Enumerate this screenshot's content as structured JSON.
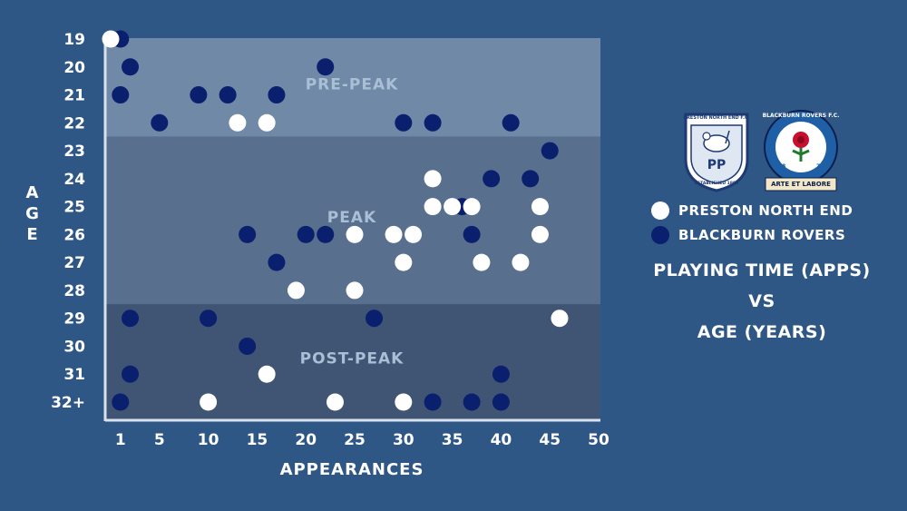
{
  "title_lines": [
    "PLAYING TIME (APPS)",
    "VS",
    "AGE (YEARS)"
  ],
  "legend": [
    {
      "label": "PRESTON NORTH END",
      "color": "#ffffff"
    },
    {
      "label": "BLACKBURN ROVERS",
      "color": "#0a1f6e"
    }
  ],
  "badges": {
    "preston": {
      "top": "PRESTON NORTH END F.C.",
      "initials": "PP",
      "bottom": "ESTABLISHED 1880"
    },
    "blackburn": {
      "ring": "BLACKBURN ROVERS F.C.",
      "year_left": "18",
      "year_right": "75",
      "motto": "ARTE ET LABORE"
    }
  },
  "chart_data": {
    "type": "scatter",
    "title": "PLAYING TIME (APPS) VS AGE (YEARS)",
    "xlabel": "APPEARANCES",
    "ylabel": "AGE",
    "xlim": [
      0,
      50
    ],
    "x_ticks": [
      1,
      5,
      10,
      15,
      20,
      25,
      30,
      35,
      40,
      45,
      50
    ],
    "y_categories": [
      "19",
      "20",
      "21",
      "22",
      "23",
      "24",
      "25",
      "26",
      "27",
      "28",
      "29",
      "30",
      "31",
      "32+"
    ],
    "zones": [
      {
        "label": "PRE-PEAK",
        "from": "19",
        "to": "22",
        "color": "#6f89a6"
      },
      {
        "label": "PEAK",
        "from": "23",
        "to": "28",
        "color": "#586f8e"
      },
      {
        "label": "POST-PEAK",
        "from": "29",
        "to": "32+",
        "color": "#3f5573"
      }
    ],
    "series": [
      {
        "name": "BLACKBURN ROVERS",
        "color": "#0a1f6e",
        "points": [
          {
            "x": 1,
            "y": "19"
          },
          {
            "x": 2,
            "y": "20"
          },
          {
            "x": 22,
            "y": "20"
          },
          {
            "x": 1,
            "y": "21"
          },
          {
            "x": 9,
            "y": "21"
          },
          {
            "x": 12,
            "y": "21"
          },
          {
            "x": 17,
            "y": "21"
          },
          {
            "x": 5,
            "y": "22"
          },
          {
            "x": 30,
            "y": "22"
          },
          {
            "x": 33,
            "y": "22"
          },
          {
            "x": 41,
            "y": "22"
          },
          {
            "x": 45,
            "y": "23"
          },
          {
            "x": 43,
            "y": "24"
          },
          {
            "x": 39,
            "y": "24"
          },
          {
            "x": 36,
            "y": "25"
          },
          {
            "x": 14,
            "y": "26"
          },
          {
            "x": 20,
            "y": "26"
          },
          {
            "x": 22,
            "y": "26"
          },
          {
            "x": 37,
            "y": "26"
          },
          {
            "x": 17,
            "y": "27"
          },
          {
            "x": 2,
            "y": "29"
          },
          {
            "x": 10,
            "y": "29"
          },
          {
            "x": 27,
            "y": "29"
          },
          {
            "x": 14,
            "y": "30"
          },
          {
            "x": 2,
            "y": "31"
          },
          {
            "x": 40,
            "y": "31"
          },
          {
            "x": 1,
            "y": "32+"
          },
          {
            "x": 33,
            "y": "32+"
          },
          {
            "x": 37,
            "y": "32+"
          },
          {
            "x": 40,
            "y": "32+"
          }
        ]
      },
      {
        "name": "PRESTON NORTH END",
        "color": "#ffffff",
        "points": [
          {
            "x": 0,
            "y": "19"
          },
          {
            "x": 13,
            "y": "22"
          },
          {
            "x": 16,
            "y": "22"
          },
          {
            "x": 33,
            "y": "24"
          },
          {
            "x": 33,
            "y": "25"
          },
          {
            "x": 35,
            "y": "25"
          },
          {
            "x": 37,
            "y": "25"
          },
          {
            "x": 44,
            "y": "25"
          },
          {
            "x": 25,
            "y": "26"
          },
          {
            "x": 29,
            "y": "26"
          },
          {
            "x": 31,
            "y": "26"
          },
          {
            "x": 44,
            "y": "26"
          },
          {
            "x": 30,
            "y": "27"
          },
          {
            "x": 38,
            "y": "27"
          },
          {
            "x": 42,
            "y": "27"
          },
          {
            "x": 19,
            "y": "28"
          },
          {
            "x": 25,
            "y": "28"
          },
          {
            "x": 46,
            "y": "29"
          },
          {
            "x": 16,
            "y": "31"
          },
          {
            "x": 10,
            "y": "32+"
          },
          {
            "x": 23,
            "y": "32+"
          },
          {
            "x": 30,
            "y": "32+"
          }
        ]
      }
    ]
  }
}
